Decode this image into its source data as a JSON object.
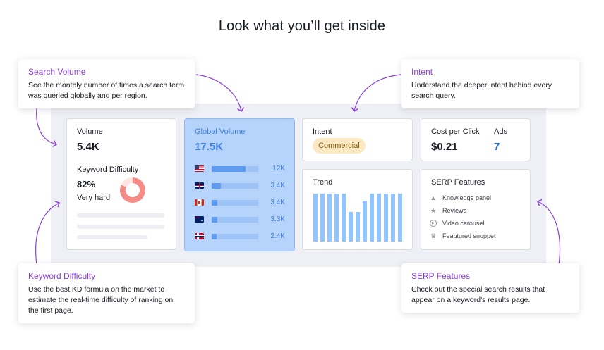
{
  "headline": "Look what you’ll get inside",
  "volume_card": {
    "volume_label": "Volume",
    "volume_value": "5.4K",
    "kd_label": "Keyword Difficulty",
    "kd_value": "82%",
    "kd_level": "Very hard",
    "kd_percent": 82,
    "kd_color": "#f48b87"
  },
  "global_volume": {
    "label": "Global Volume",
    "value": "17.5K",
    "rows": [
      {
        "flag": "us-flag-icon",
        "value": "12K",
        "fill": 0.72
      },
      {
        "flag": "uk-flag-icon",
        "value": "3.4K",
        "fill": 0.2
      },
      {
        "flag": "ca-flag-icon",
        "value": "3.4K",
        "fill": 0.12
      },
      {
        "flag": "au-flag-icon",
        "value": "3.3K",
        "fill": 0.12
      },
      {
        "flag": "no-flag-icon",
        "value": "2.4K",
        "fill": 0.1
      }
    ],
    "highlight_color": "#b6d3fb"
  },
  "intent_card": {
    "label": "Intent",
    "badge": "Commercial"
  },
  "cpc_card": {
    "cpc_label": "Cost per Click",
    "cpc_value": "$0.21",
    "ads_label": "Ads",
    "ads_value": "7",
    "ads_color": "#1a6ed8"
  },
  "trend_card": {
    "label": "Trend",
    "values": [
      1,
      1,
      1,
      1,
      1,
      0.62,
      0.62,
      0.85,
      1,
      1,
      1,
      1,
      1
    ]
  },
  "serp_card": {
    "label": "SERP Features",
    "items": [
      {
        "icon": "graduation-cap-icon",
        "text": "Knowledge panel"
      },
      {
        "icon": "star-icon",
        "text": "Reviews"
      },
      {
        "icon": "play-icon",
        "text": "Video carousel"
      },
      {
        "icon": "crown-icon",
        "text": "Feautured snoppet"
      }
    ]
  },
  "callouts": {
    "search_volume": {
      "title": "Search Volume",
      "desc": "See the monthly number of times a search term was queried globally and per region."
    },
    "intent": {
      "title": "Intent",
      "desc": "Understand the deeper intent behind every search query."
    },
    "keyword_difficulty": {
      "title": "Keyword Difficulty",
      "desc": "Use the best KD formula on the market to estimate the real-time difficulty of ranking on the first page."
    },
    "serp_features": {
      "title": "SERP Features",
      "desc": "Check out the special search results that appear on a keyword's results page."
    }
  },
  "accent_color": "#8b3fd9"
}
